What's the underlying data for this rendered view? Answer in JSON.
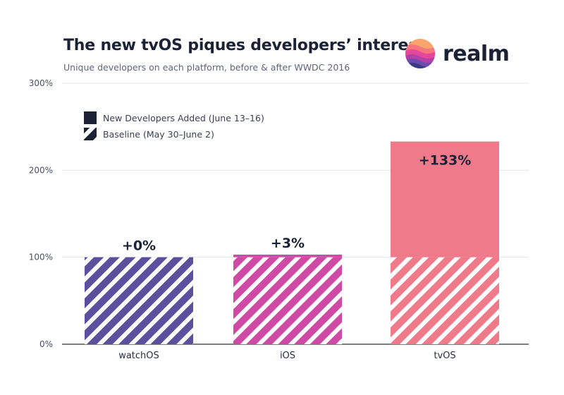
{
  "header": {
    "title": "The new tvOS piques developers’ interest",
    "subtitle": "Unique developers on each platform, before & after WWDC 2016"
  },
  "logo": {
    "text": "realm",
    "icon": "realm-logo-icon"
  },
  "legend": {
    "new_label": "New Developers Added (June 13–16)",
    "baseline_label": "Baseline (May 30–June 2)",
    "placement": "top-left"
  },
  "colors": {
    "watchOS": "#5b4f9e",
    "iOS": "#cf4aa5",
    "tvOS": "#ef7a89",
    "legend_swatch": "#1c2236",
    "grid": "#e3e4e8",
    "axis": "#2a2f40"
  },
  "chart_data": {
    "type": "bar",
    "stacked": true,
    "title": "The new tvOS piques developers’ interest",
    "subtitle": "Unique developers on each platform, before & after WWDC 2016",
    "xlabel": "",
    "ylabel": "",
    "ylim": [
      0,
      300
    ],
    "yticks": [
      0,
      100,
      200,
      300
    ],
    "ytick_labels": [
      "0%",
      "100%",
      "200%",
      "300%"
    ],
    "grid": true,
    "categories": [
      "watchOS",
      "iOS",
      "tvOS"
    ],
    "series": [
      {
        "name": "Baseline (May 30–June 2)",
        "values": [
          100,
          100,
          100
        ],
        "pattern": "hatched"
      },
      {
        "name": "New Developers Added (June 13–16)",
        "values": [
          0,
          3,
          133
        ],
        "pattern": "solid"
      }
    ],
    "data_labels": [
      "+0%",
      "+3%",
      "+133%"
    ]
  }
}
